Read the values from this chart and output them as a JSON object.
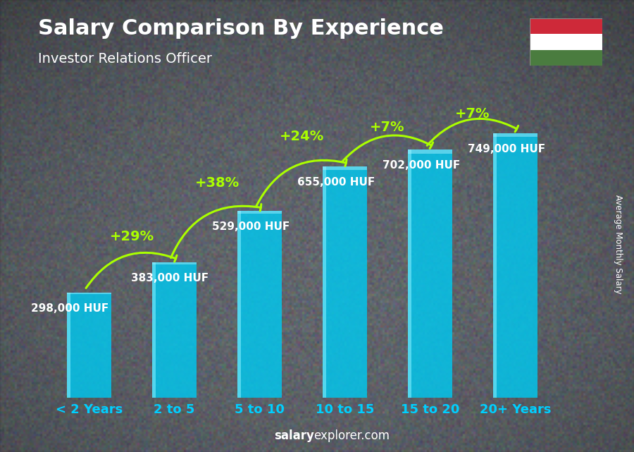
{
  "title": "Salary Comparison By Experience",
  "subtitle": "Investor Relations Officer",
  "categories": [
    "< 2 Years",
    "2 to 5",
    "5 to 10",
    "10 to 15",
    "15 to 20",
    "20+ Years"
  ],
  "values": [
    298000,
    383000,
    529000,
    655000,
    702000,
    749000
  ],
  "value_labels": [
    "298,000 HUF",
    "383,000 HUF",
    "529,000 HUF",
    "655,000 HUF",
    "702,000 HUF",
    "749,000 HUF"
  ],
  "pct_labels": [
    "+29%",
    "+38%",
    "+24%",
    "+7%",
    "+7%"
  ],
  "bar_color_face": "#00c8f0",
  "bar_alpha": 0.82,
  "bg_color": "#4a5060",
  "title_color": "#ffffff",
  "subtitle_color": "#ffffff",
  "value_label_color": "#ffffff",
  "pct_color": "#aaff00",
  "xticklabel_color": "#00cfff",
  "watermark_bold": "salary",
  "watermark_normal": "explorer.com",
  "ylabel_text": "Average Monthly Salary",
  "ylabel_color": "#ffffff",
  "flag_colors": [
    "#ce2939",
    "#ffffff",
    "#4a7c3f"
  ],
  "bar_width": 0.52,
  "ylim_max": 870000,
  "title_fontsize": 22,
  "subtitle_fontsize": 14,
  "value_label_fontsize": 11,
  "pct_fontsize": 14,
  "xtick_fontsize": 13
}
